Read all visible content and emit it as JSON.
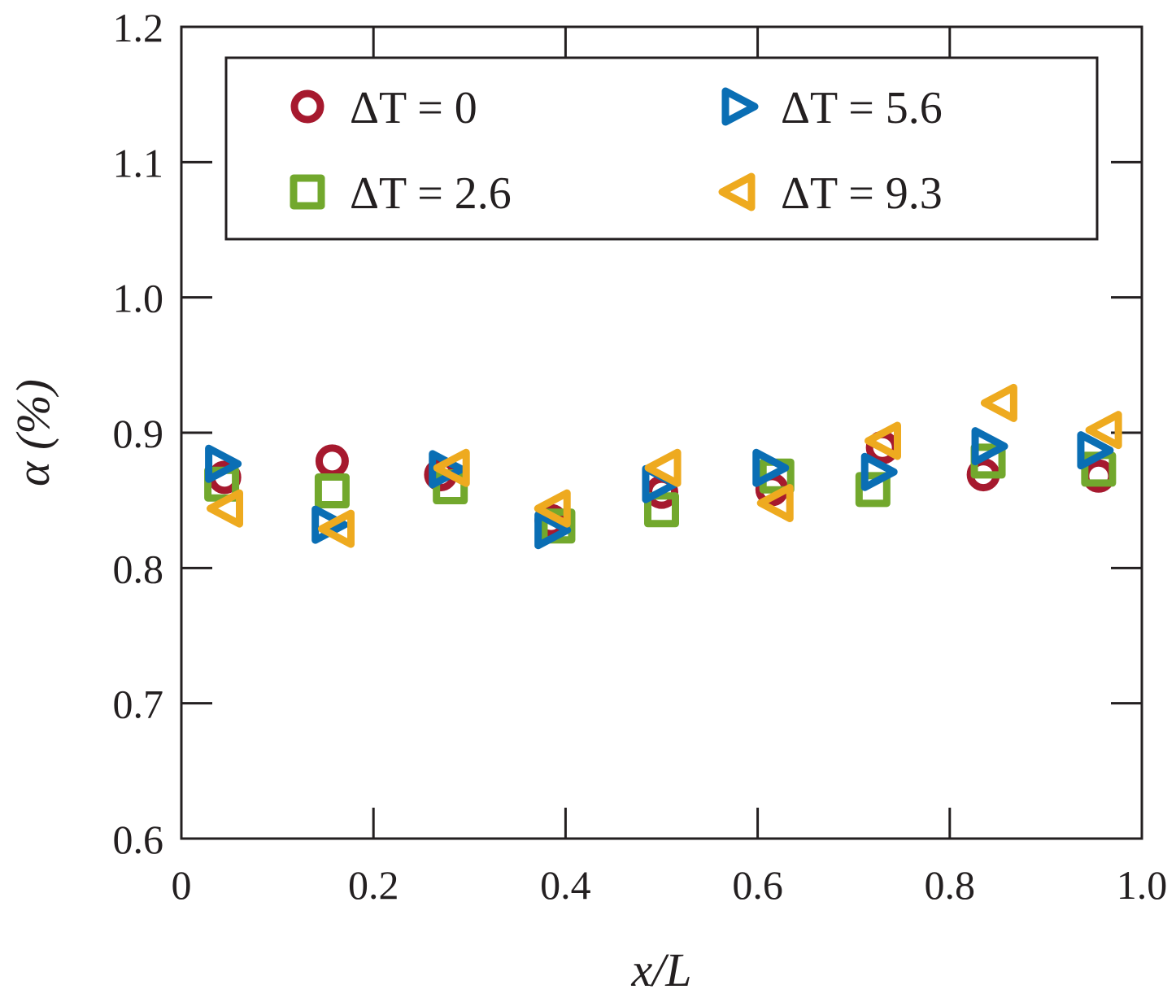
{
  "chart_data": {
    "type": "scatter",
    "title": "",
    "xlabel": "x/L",
    "ylabel": "α (%)",
    "xlim": [
      0,
      1.0
    ],
    "ylim": [
      0.6,
      1.2
    ],
    "x_ticks": [
      0,
      0.2,
      0.4,
      0.6,
      0.8,
      1.0
    ],
    "x_tick_labels": [
      "0",
      "0.2",
      "0.4",
      "0.6",
      "0.8",
      "1.0"
    ],
    "y_ticks": [
      0.6,
      0.7,
      0.8,
      0.9,
      1.0,
      1.1,
      1.2
    ],
    "y_tick_labels": [
      "0.6",
      "0.7",
      "0.8",
      "0.9",
      "1.0",
      "1.1",
      "1.2"
    ],
    "grid": false,
    "legend_position": "top",
    "series": [
      {
        "name": "ΔT = 0",
        "marker": "circle",
        "color": "#a6192e",
        "x": [
          0.045,
          0.157,
          0.27,
          0.385,
          0.5,
          0.615,
          0.73,
          0.835,
          0.955
        ],
        "y": [
          0.867,
          0.879,
          0.869,
          0.835,
          0.856,
          0.858,
          0.889,
          0.869,
          0.868
        ]
      },
      {
        "name": "ΔT = 2.6",
        "marker": "square",
        "color": "#72a82d",
        "x": [
          0.042,
          0.157,
          0.28,
          0.392,
          0.5,
          0.62,
          0.72,
          0.84,
          0.955
        ],
        "y": [
          0.862,
          0.857,
          0.86,
          0.831,
          0.843,
          0.868,
          0.858,
          0.879,
          0.873
        ]
      },
      {
        "name": "ΔT = 5.6",
        "marker": "triangle-right",
        "color": "#0a6eb4",
        "x": [
          0.042,
          0.153,
          0.275,
          0.385,
          0.497,
          0.612,
          0.725,
          0.84,
          0.95
        ],
        "y": [
          0.877,
          0.832,
          0.873,
          0.828,
          0.862,
          0.874,
          0.871,
          0.89,
          0.887
        ]
      },
      {
        "name": "ΔT = 9.3",
        "marker": "triangle-left",
        "color": "#eeaa1f",
        "x": [
          0.047,
          0.163,
          0.283,
          0.388,
          0.503,
          0.62,
          0.732,
          0.853,
          0.962
        ],
        "y": [
          0.844,
          0.829,
          0.874,
          0.844,
          0.874,
          0.848,
          0.894,
          0.922,
          0.902
        ]
      }
    ]
  }
}
